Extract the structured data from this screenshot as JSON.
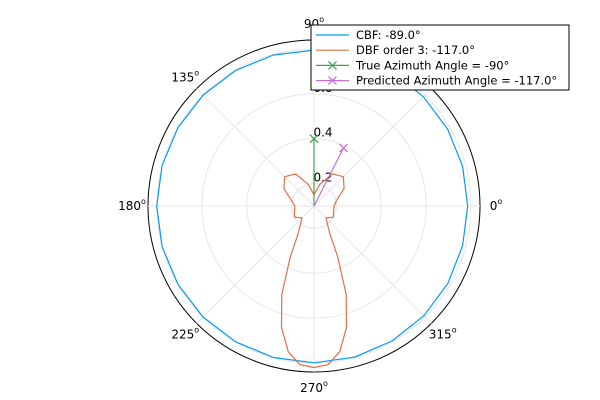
{
  "chart_data": {
    "type": "polar-line",
    "title": "",
    "angular_ticks": [
      {
        "deg": 0,
        "label": "0"
      },
      {
        "deg": 45,
        "label": ""
      },
      {
        "deg": 90,
        "label": "90"
      },
      {
        "deg": 135,
        "label": "135"
      },
      {
        "deg": 180,
        "label": "180"
      },
      {
        "deg": 225,
        "label": "225"
      },
      {
        "deg": 270,
        "label": "270"
      },
      {
        "deg": 315,
        "label": "315"
      }
    ],
    "degree_mark": "o",
    "radial_ticks": [
      {
        "value": 0.2,
        "label": "0.2"
      },
      {
        "value": 0.4,
        "label": "0.4"
      },
      {
        "value": 0.6,
        "label": "0.6"
      }
    ],
    "rlim": [
      0.1,
      0.84
    ],
    "grid": true,
    "legend_placement": "top-right",
    "series": [
      {
        "name": "CBF: -89.0°",
        "color": "#009AFA",
        "kind": "line",
        "theta_deg": [
          0,
          15,
          30,
          45,
          60,
          75,
          90,
          105,
          120,
          135,
          150,
          165,
          180,
          195,
          210,
          225,
          240,
          255,
          270,
          285,
          300,
          315,
          330,
          345,
          360
        ],
        "r": [
          0.785,
          0.786,
          0.787,
          0.789,
          0.791,
          0.793,
          0.795,
          0.797,
          0.798,
          0.799,
          0.8,
          0.801,
          0.801,
          0.801,
          0.8,
          0.8,
          0.799,
          0.799,
          0.799,
          0.798,
          0.795,
          0.792,
          0.789,
          0.786,
          0.785
        ]
      },
      {
        "name": "DBF order 3: -117.0°",
        "color": "#E36F47",
        "kind": "line",
        "theta_deg": [
          0,
          15,
          30,
          45,
          60,
          75,
          90,
          105,
          120,
          135,
          150,
          165,
          180,
          195,
          210,
          225,
          240,
          245,
          250,
          255,
          260,
          265,
          270,
          275,
          280,
          285,
          290,
          295,
          300,
          315,
          330,
          345,
          360
        ],
        "r": [
          0.19,
          0.205,
          0.255,
          0.285,
          0.265,
          0.2,
          0.15,
          0.2,
          0.265,
          0.285,
          0.255,
          0.205,
          0.185,
          0.19,
          0.2,
          0.175,
          0.24,
          0.35,
          0.52,
          0.66,
          0.76,
          0.81,
          0.82,
          0.81,
          0.76,
          0.66,
          0.52,
          0.35,
          0.24,
          0.175,
          0.2,
          0.19,
          0.19
        ]
      },
      {
        "name": "True Azimuth Angle = -90°",
        "color": "#3DA44D",
        "kind": "stem",
        "theta_deg": [
          90
        ],
        "r": [
          0.4
        ]
      },
      {
        "name": "Predicted Azimuth Angle = -117.0°",
        "color": "#C271D2",
        "kind": "stem",
        "theta_deg": [
          63
        ],
        "r": [
          0.39
        ]
      }
    ]
  }
}
